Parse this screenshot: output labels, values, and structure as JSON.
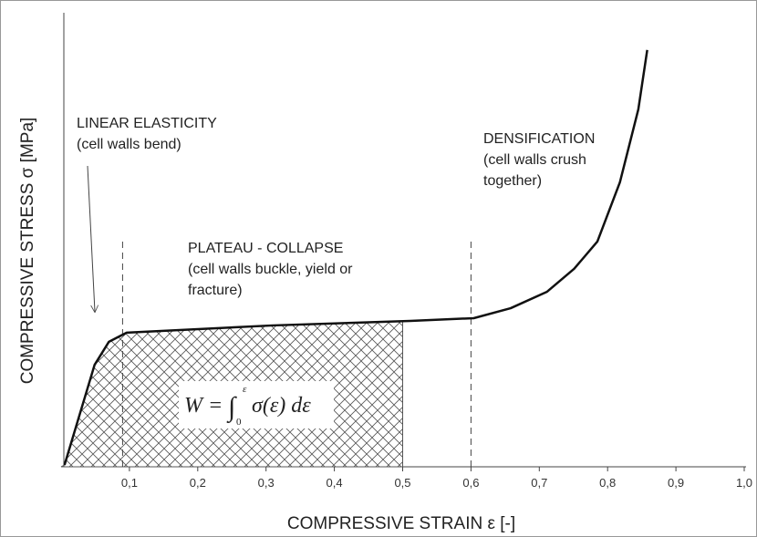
{
  "chart_data": {
    "type": "line",
    "x_label": "COMPRESSIVE STRAIN ε [-]",
    "y_label": "COMPRESSIVE STRESS σ [MPa]",
    "x": [
      0.005,
      0.049,
      0.07,
      0.096,
      0.31,
      0.511,
      0.604,
      0.658,
      0.711,
      0.751,
      0.785,
      0.818,
      0.845,
      0.858
    ],
    "values": [
      0.004,
      0.225,
      0.276,
      0.296,
      0.312,
      0.322,
      0.328,
      0.35,
      0.386,
      0.437,
      0.497,
      0.628,
      0.789,
      0.92
    ],
    "color": "#111111",
    "xlim": [
      0,
      1.0
    ],
    "ylim": [
      0,
      1
    ],
    "xticks": [
      {
        "value": 0.1,
        "label": "0,1"
      },
      {
        "value": 0.2,
        "label": "0,2"
      },
      {
        "value": 0.3,
        "label": "0,3"
      },
      {
        "value": 0.4,
        "label": "0,4"
      },
      {
        "value": 0.5,
        "label": "0,5"
      },
      {
        "value": 0.6,
        "label": "0,6"
      },
      {
        "value": 0.7,
        "label": "0,7"
      },
      {
        "value": 0.8,
        "label": "0,8"
      },
      {
        "value": 0.9,
        "label": "0,9"
      },
      {
        "value": 1.0,
        "label": "1,0"
      }
    ],
    "vlines": [
      0.09,
      0.6
    ],
    "area_end": 0.5,
    "annotations": [
      {
        "lines": [
          "LINEAR ELASTICITY",
          "(cell walls bend)"
        ]
      },
      {
        "lines": [
          "PLATEAU - COLLAPSE",
          "(cell walls buckle, yield or",
          "fracture)"
        ]
      },
      {
        "lines": [
          "DENSIFICATION",
          "(cell walls crush",
          "together)"
        ]
      }
    ],
    "formula": {
      "lhs": "W =",
      "integral": "∫",
      "lower": "0",
      "upper": "ε",
      "body": "σ(ε) dε"
    }
  }
}
